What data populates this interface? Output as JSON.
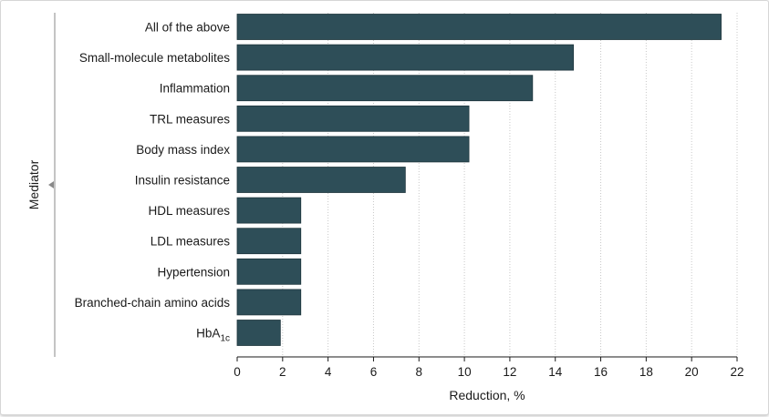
{
  "chart_data": {
    "type": "bar",
    "orientation": "horizontal",
    "title": "",
    "xlabel": "Reduction, %",
    "ylabel": "Mediator",
    "xlim": [
      0,
      22
    ],
    "xticks": [
      "0",
      "2",
      "4",
      "6",
      "8",
      "10",
      "12",
      "14",
      "16",
      "18",
      "20",
      "22"
    ],
    "grid": true,
    "bar_color": "#2e4e58",
    "categories": [
      "All of the above",
      "Small-molecule metabolites",
      "Inflammation",
      "TRL measures",
      "Body mass index",
      "Insulin resistance",
      "HDL measures",
      "LDL measures",
      "Hypertension",
      "Branched-chain amino acids",
      "HbA1c"
    ],
    "values": [
      21.3,
      14.8,
      13.0,
      10.2,
      10.2,
      7.4,
      2.8,
      2.8,
      2.8,
      2.8,
      1.9
    ]
  }
}
